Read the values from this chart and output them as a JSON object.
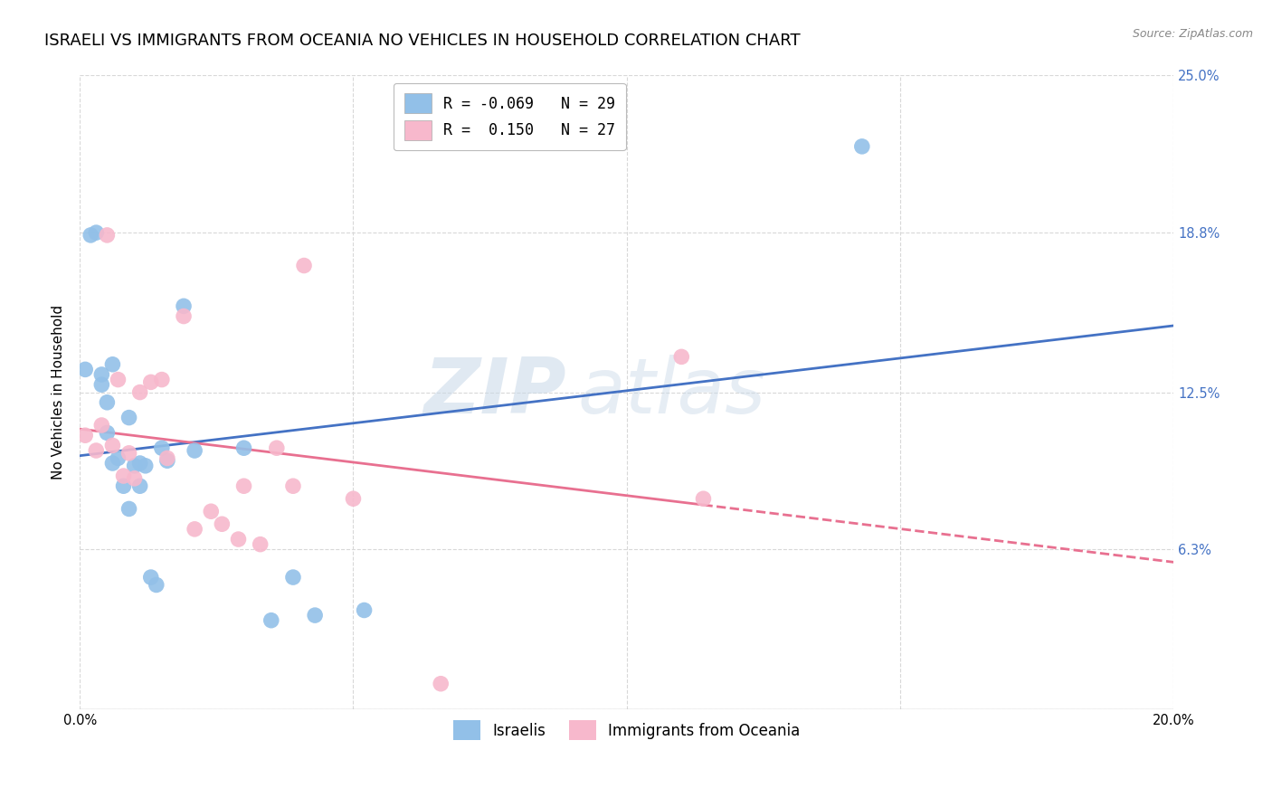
{
  "title": "ISRAELI VS IMMIGRANTS FROM OCEANIA NO VEHICLES IN HOUSEHOLD CORRELATION CHART",
  "source": "Source: ZipAtlas.com",
  "ylabel": "No Vehicles in Household",
  "xlim": [
    0.0,
    0.2
  ],
  "ylim": [
    0.0,
    0.25
  ],
  "ytick_labels_right": [
    "25.0%",
    "18.8%",
    "12.5%",
    "6.3%"
  ],
  "ytick_positions_right": [
    0.25,
    0.188,
    0.125,
    0.063
  ],
  "legend_label_blue": "R = -0.069   N = 29",
  "legend_label_pink": "R =  0.150   N = 27",
  "legend_label1": "Israelis",
  "legend_label2": "Immigrants from Oceania",
  "color_blue": "#92c0e8",
  "color_pink": "#f7b8cc",
  "line_color_blue": "#4472c4",
  "line_color_pink": "#e87090",
  "watermark_zip": "ZIP",
  "watermark_atlas": "atlas",
  "israelis_x": [
    0.001,
    0.002,
    0.003,
    0.004,
    0.004,
    0.005,
    0.005,
    0.006,
    0.006,
    0.007,
    0.008,
    0.009,
    0.009,
    0.01,
    0.011,
    0.011,
    0.012,
    0.013,
    0.014,
    0.015,
    0.016,
    0.019,
    0.021,
    0.03,
    0.035,
    0.039,
    0.043,
    0.052,
    0.143
  ],
  "israelis_y": [
    0.134,
    0.187,
    0.188,
    0.132,
    0.128,
    0.109,
    0.121,
    0.097,
    0.136,
    0.099,
    0.088,
    0.115,
    0.079,
    0.096,
    0.088,
    0.097,
    0.096,
    0.052,
    0.049,
    0.103,
    0.098,
    0.159,
    0.102,
    0.103,
    0.035,
    0.052,
    0.037,
    0.039,
    0.222
  ],
  "oceania_x": [
    0.001,
    0.003,
    0.004,
    0.005,
    0.006,
    0.007,
    0.008,
    0.009,
    0.01,
    0.011,
    0.013,
    0.015,
    0.016,
    0.019,
    0.021,
    0.024,
    0.026,
    0.029,
    0.03,
    0.033,
    0.036,
    0.039,
    0.041,
    0.05,
    0.066,
    0.11,
    0.114
  ],
  "oceania_y": [
    0.108,
    0.102,
    0.112,
    0.187,
    0.104,
    0.13,
    0.092,
    0.101,
    0.091,
    0.125,
    0.129,
    0.13,
    0.099,
    0.155,
    0.071,
    0.078,
    0.073,
    0.067,
    0.088,
    0.065,
    0.103,
    0.088,
    0.175,
    0.083,
    0.01,
    0.139,
    0.083
  ],
  "background_color": "#ffffff",
  "grid_color": "#d8d8d8",
  "title_fontsize": 13,
  "axis_fontsize": 11,
  "tick_fontsize": 10.5
}
